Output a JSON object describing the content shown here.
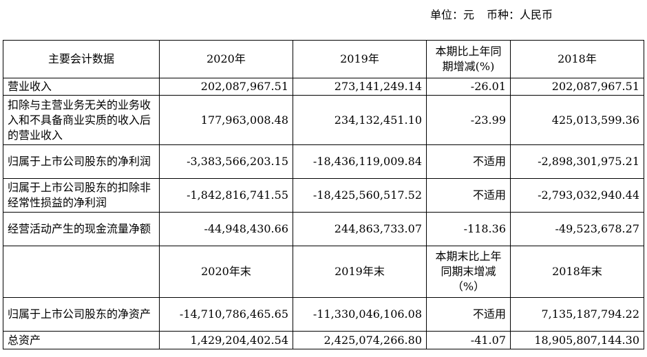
{
  "unit": {
    "label": "单位：元",
    "currency": "币种：人民币"
  },
  "header1": [
    "主要会计数据",
    "2020年",
    "2019年",
    "本期比上年同期增减(%)",
    "2018年"
  ],
  "rows1": [
    {
      "label": "营业收入",
      "v2020": "202,087,967.51",
      "v2019": "273,141,249.14",
      "change": "-26.01",
      "v2018": "202,087,967.51"
    },
    {
      "label": "扣除与主营业务无关的业务收入和不具备商业实质的收入后的营业收入",
      "v2020": "177,963,008.48",
      "v2019": "234,132,451.10",
      "change": "-23.99",
      "v2018": "425,013,599.36"
    },
    {
      "label": "归属于上市公司股东的净利润",
      "v2020": "-3,383,566,203.15",
      "v2019": "-18,436,119,009.84",
      "change": "不适用",
      "v2018": "-2,898,301,975.21"
    },
    {
      "label": "归属于上市公司股东的扣除非经常性损益的净利润",
      "v2020": "-1,842,816,741.55",
      "v2019": "-18,425,560,517.52",
      "change": "不适用",
      "v2018": "-2,793,032,940.44"
    },
    {
      "label": "经营活动产生的现金流量净额",
      "v2020": "-44,948,430.66",
      "v2019": "244,863,733.07",
      "change": "-118.36",
      "v2018": "-49,523,678.27"
    }
  ],
  "header2": [
    "",
    "2020年末",
    "2019年末",
    "本期末比上年同期末增减（%）",
    "2018年末"
  ],
  "rows2": [
    {
      "label": "归属于上市公司股东的净资产",
      "v2020": "-14,710,786,465.65",
      "v2019": "-11,330,046,106.08",
      "change": "不适用",
      "v2018": "7,135,187,794.22"
    },
    {
      "label": "总资产",
      "v2020": "1,429,204,402.54",
      "v2019": "2,425,074,266.80",
      "change": "-41.07",
      "v2018": "18,905,807,144.30"
    }
  ]
}
